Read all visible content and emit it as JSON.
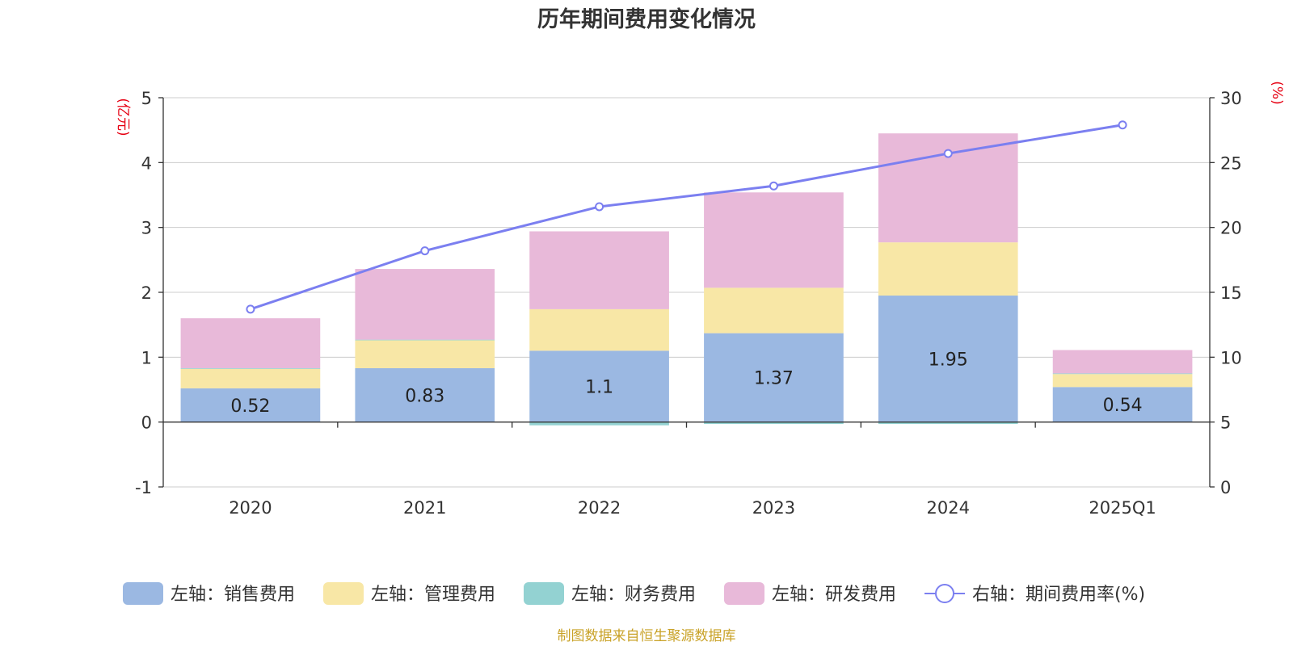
{
  "chart_data": {
    "type": "bar",
    "title": "历年期间费用变化情况",
    "categories": [
      "2020",
      "2021",
      "2022",
      "2023",
      "2024",
      "2025Q1"
    ],
    "left_axis": {
      "unit": "(亿元)",
      "ylim": [
        -1,
        5
      ],
      "ticks": [
        -1,
        0,
        1,
        2,
        3,
        4,
        5
      ]
    },
    "right_axis": {
      "unit": "(%)",
      "ylim": [
        0,
        30
      ],
      "ticks": [
        0,
        5,
        10,
        15,
        20,
        25,
        30
      ]
    },
    "series": [
      {
        "name": "左轴：销售费用",
        "axis": "left",
        "kind": "bar",
        "color": "#9bb8e2",
        "values": [
          0.52,
          0.83,
          1.1,
          1.37,
          1.95,
          0.54
        ],
        "labels": [
          "0.52",
          "0.83",
          "1.1",
          "1.37",
          "1.95",
          "0.54"
        ]
      },
      {
        "name": "左轴：管理费用",
        "axis": "left",
        "kind": "bar",
        "color": "#f8e7a6",
        "values": [
          0.3,
          0.43,
          0.64,
          0.7,
          0.82,
          0.2
        ]
      },
      {
        "name": "左轴：财务费用",
        "axis": "left",
        "kind": "bar",
        "color": "#93d2d2",
        "values": [
          0.01,
          0.01,
          -0.05,
          -0.03,
          -0.03,
          0.01
        ]
      },
      {
        "name": "左轴：研发费用",
        "axis": "left",
        "kind": "bar",
        "color": "#e8b9d9",
        "values": [
          0.77,
          1.09,
          1.2,
          1.47,
          1.68,
          0.36
        ]
      },
      {
        "name": "右轴：期间费用率(%)",
        "axis": "right",
        "kind": "line",
        "color": "#7b7ff0",
        "values": [
          13.7,
          18.2,
          21.6,
          23.2,
          25.7,
          27.9
        ]
      }
    ],
    "legend_position": "bottom",
    "grid": true
  },
  "footer": {
    "source": "制图数据来自恒生聚源数据库"
  }
}
